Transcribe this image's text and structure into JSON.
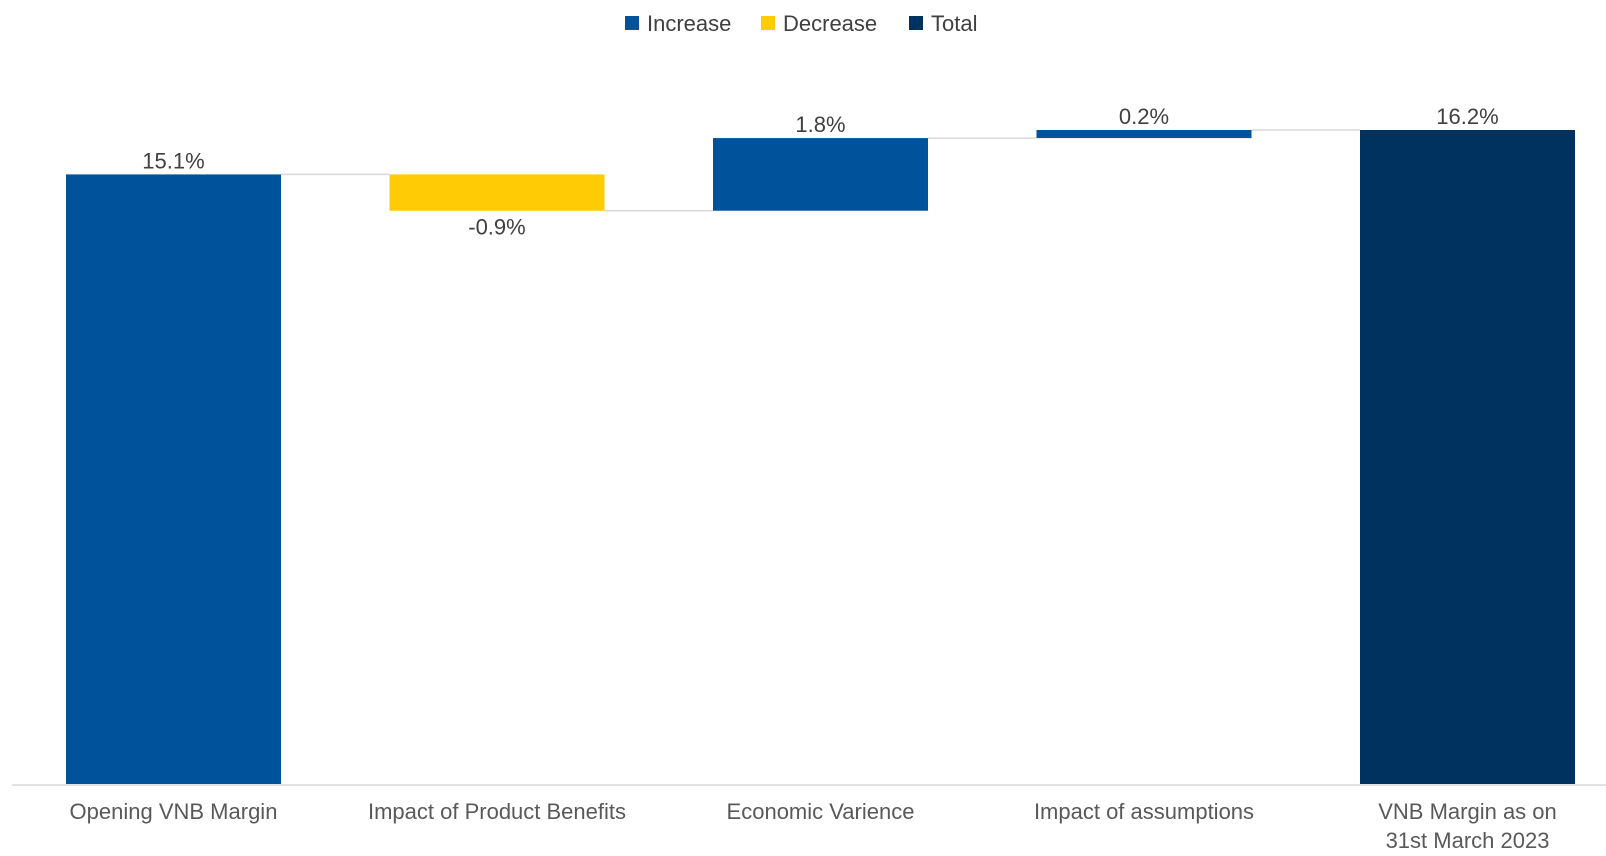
{
  "chart_data": {
    "type": "bar",
    "subtype": "waterfall",
    "title": "",
    "xlabel": "",
    "ylabel": "",
    "ylim": [
      0,
      16.2
    ],
    "grid": false,
    "legend_placement": "top-center",
    "legend": [
      {
        "label": "Increase",
        "color": "#00539B"
      },
      {
        "label": "Decrease",
        "color": "#FFCB05"
      },
      {
        "label": "Total",
        "color": "#00325F"
      }
    ],
    "categories": [
      "Opening VNB Margin",
      "Impact of Product Benefits",
      "Economic Varience",
      "Impact of assumptions",
      "VNB Margin as on 31st March 2023"
    ],
    "category_lines": [
      [
        "Opening VNB Margin"
      ],
      [
        "Impact of Product Benefits"
      ],
      [
        "Economic Varience"
      ],
      [
        "Impact of assumptions"
      ],
      [
        "VNB Margin as on",
        "31st March 2023"
      ]
    ],
    "values": [
      15.1,
      -0.9,
      1.8,
      0.2,
      16.2
    ],
    "value_labels": [
      "15.1%",
      "-0.9%",
      "1.8%",
      "0.2%",
      "16.2%"
    ],
    "bar_kinds": [
      "Increase",
      "Decrease",
      "Increase",
      "Increase",
      "Total"
    ],
    "unit": "%"
  }
}
